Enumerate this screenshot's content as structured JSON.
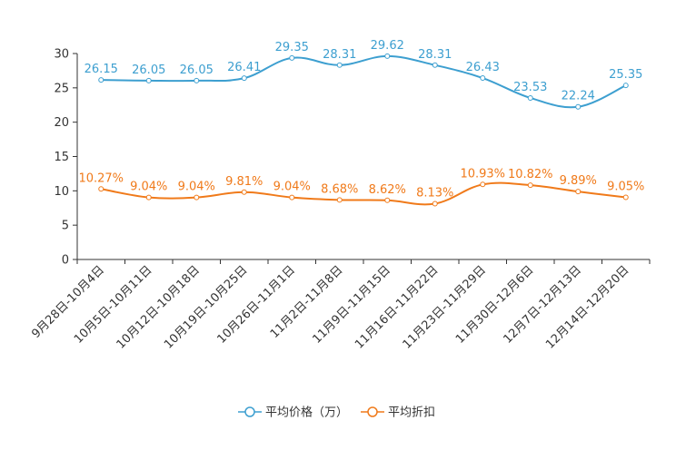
{
  "chart_data": {
    "type": "line",
    "categories": [
      "9月28日-10月4日",
      "10月5日-10月11日",
      "10月12日-10月18日",
      "10月19日-10月25日",
      "10月26日-11月1日",
      "11月2日-11月8日",
      "11月9日-11月15日",
      "11月16日-11月22日",
      "11月23日-11月29日",
      "11月30日-12月6日",
      "12月7日-12月13日",
      "12月14日-12月20日"
    ],
    "series": [
      {
        "name": "平均价格（万）",
        "color": "#3d9fd0",
        "values": [
          26.15,
          26.05,
          26.05,
          26.41,
          29.35,
          28.31,
          29.62,
          28.31,
          26.43,
          23.53,
          22.24,
          25.35
        ],
        "labels": [
          "26.15",
          "26.05",
          "26.05",
          "26.41",
          "29.35",
          "28.31",
          "29.62",
          "28.31",
          "26.43",
          "23.53",
          "22.24",
          "25.35"
        ]
      },
      {
        "name": "平均折扣",
        "color": "#f07a1a",
        "values": [
          10.27,
          9.04,
          9.04,
          9.81,
          9.04,
          8.68,
          8.62,
          8.13,
          10.93,
          10.82,
          9.89,
          9.05
        ],
        "labels": [
          "10.27%",
          "9.04%",
          "9.04%",
          "9.81%",
          "9.04%",
          "8.68%",
          "8.62%",
          "8.13%",
          "10.93%",
          "10.82%",
          "9.89%",
          "9.05%"
        ]
      }
    ],
    "ylim": [
      0,
      30
    ],
    "yticks": [
      "0",
      "5",
      "10",
      "15",
      "20",
      "25",
      "30"
    ],
    "xlabel": "",
    "ylabel": "",
    "grid": false,
    "legend": "bottom"
  }
}
